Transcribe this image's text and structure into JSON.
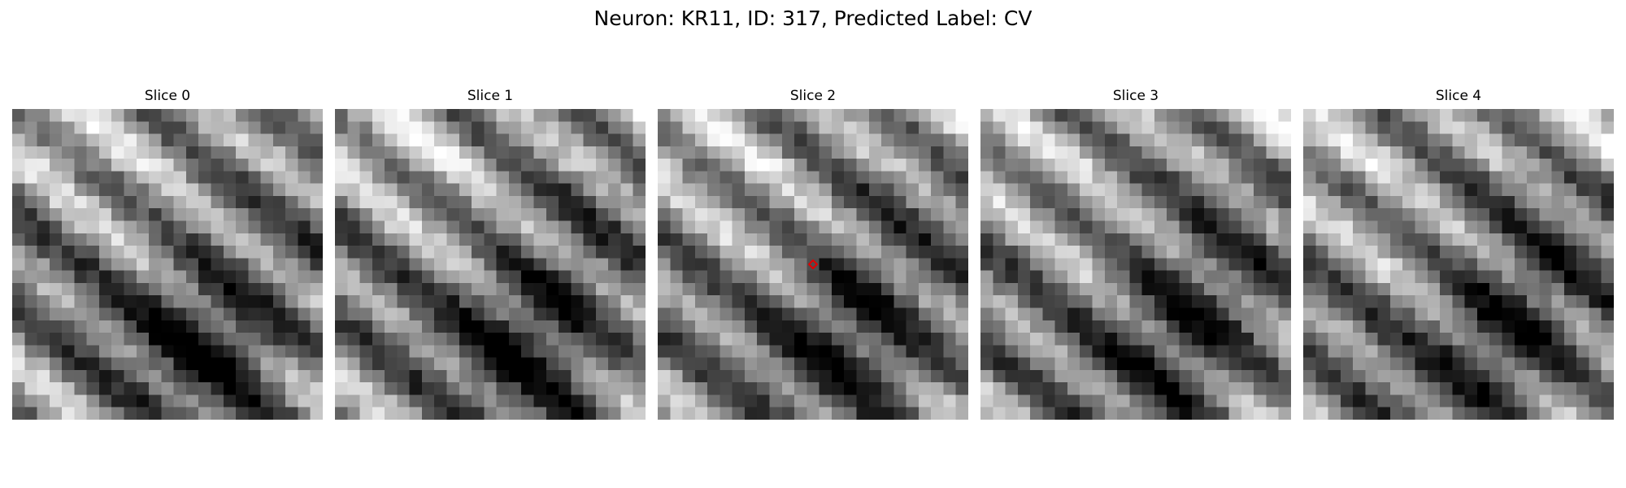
{
  "figure": {
    "title": "Neuron: KR11, ID: 317, Predicted Label: CV"
  },
  "slices": [
    {
      "title": "Slice 0"
    },
    {
      "title": "Slice 1"
    },
    {
      "title": "Slice 2"
    },
    {
      "title": "Slice 3"
    },
    {
      "title": "Slice 4"
    }
  ],
  "colors": {
    "background": "#ffffff",
    "marker": "#e00000"
  },
  "colormap": "gray",
  "marker": {
    "slice_index": 2,
    "shape": "diamond"
  }
}
